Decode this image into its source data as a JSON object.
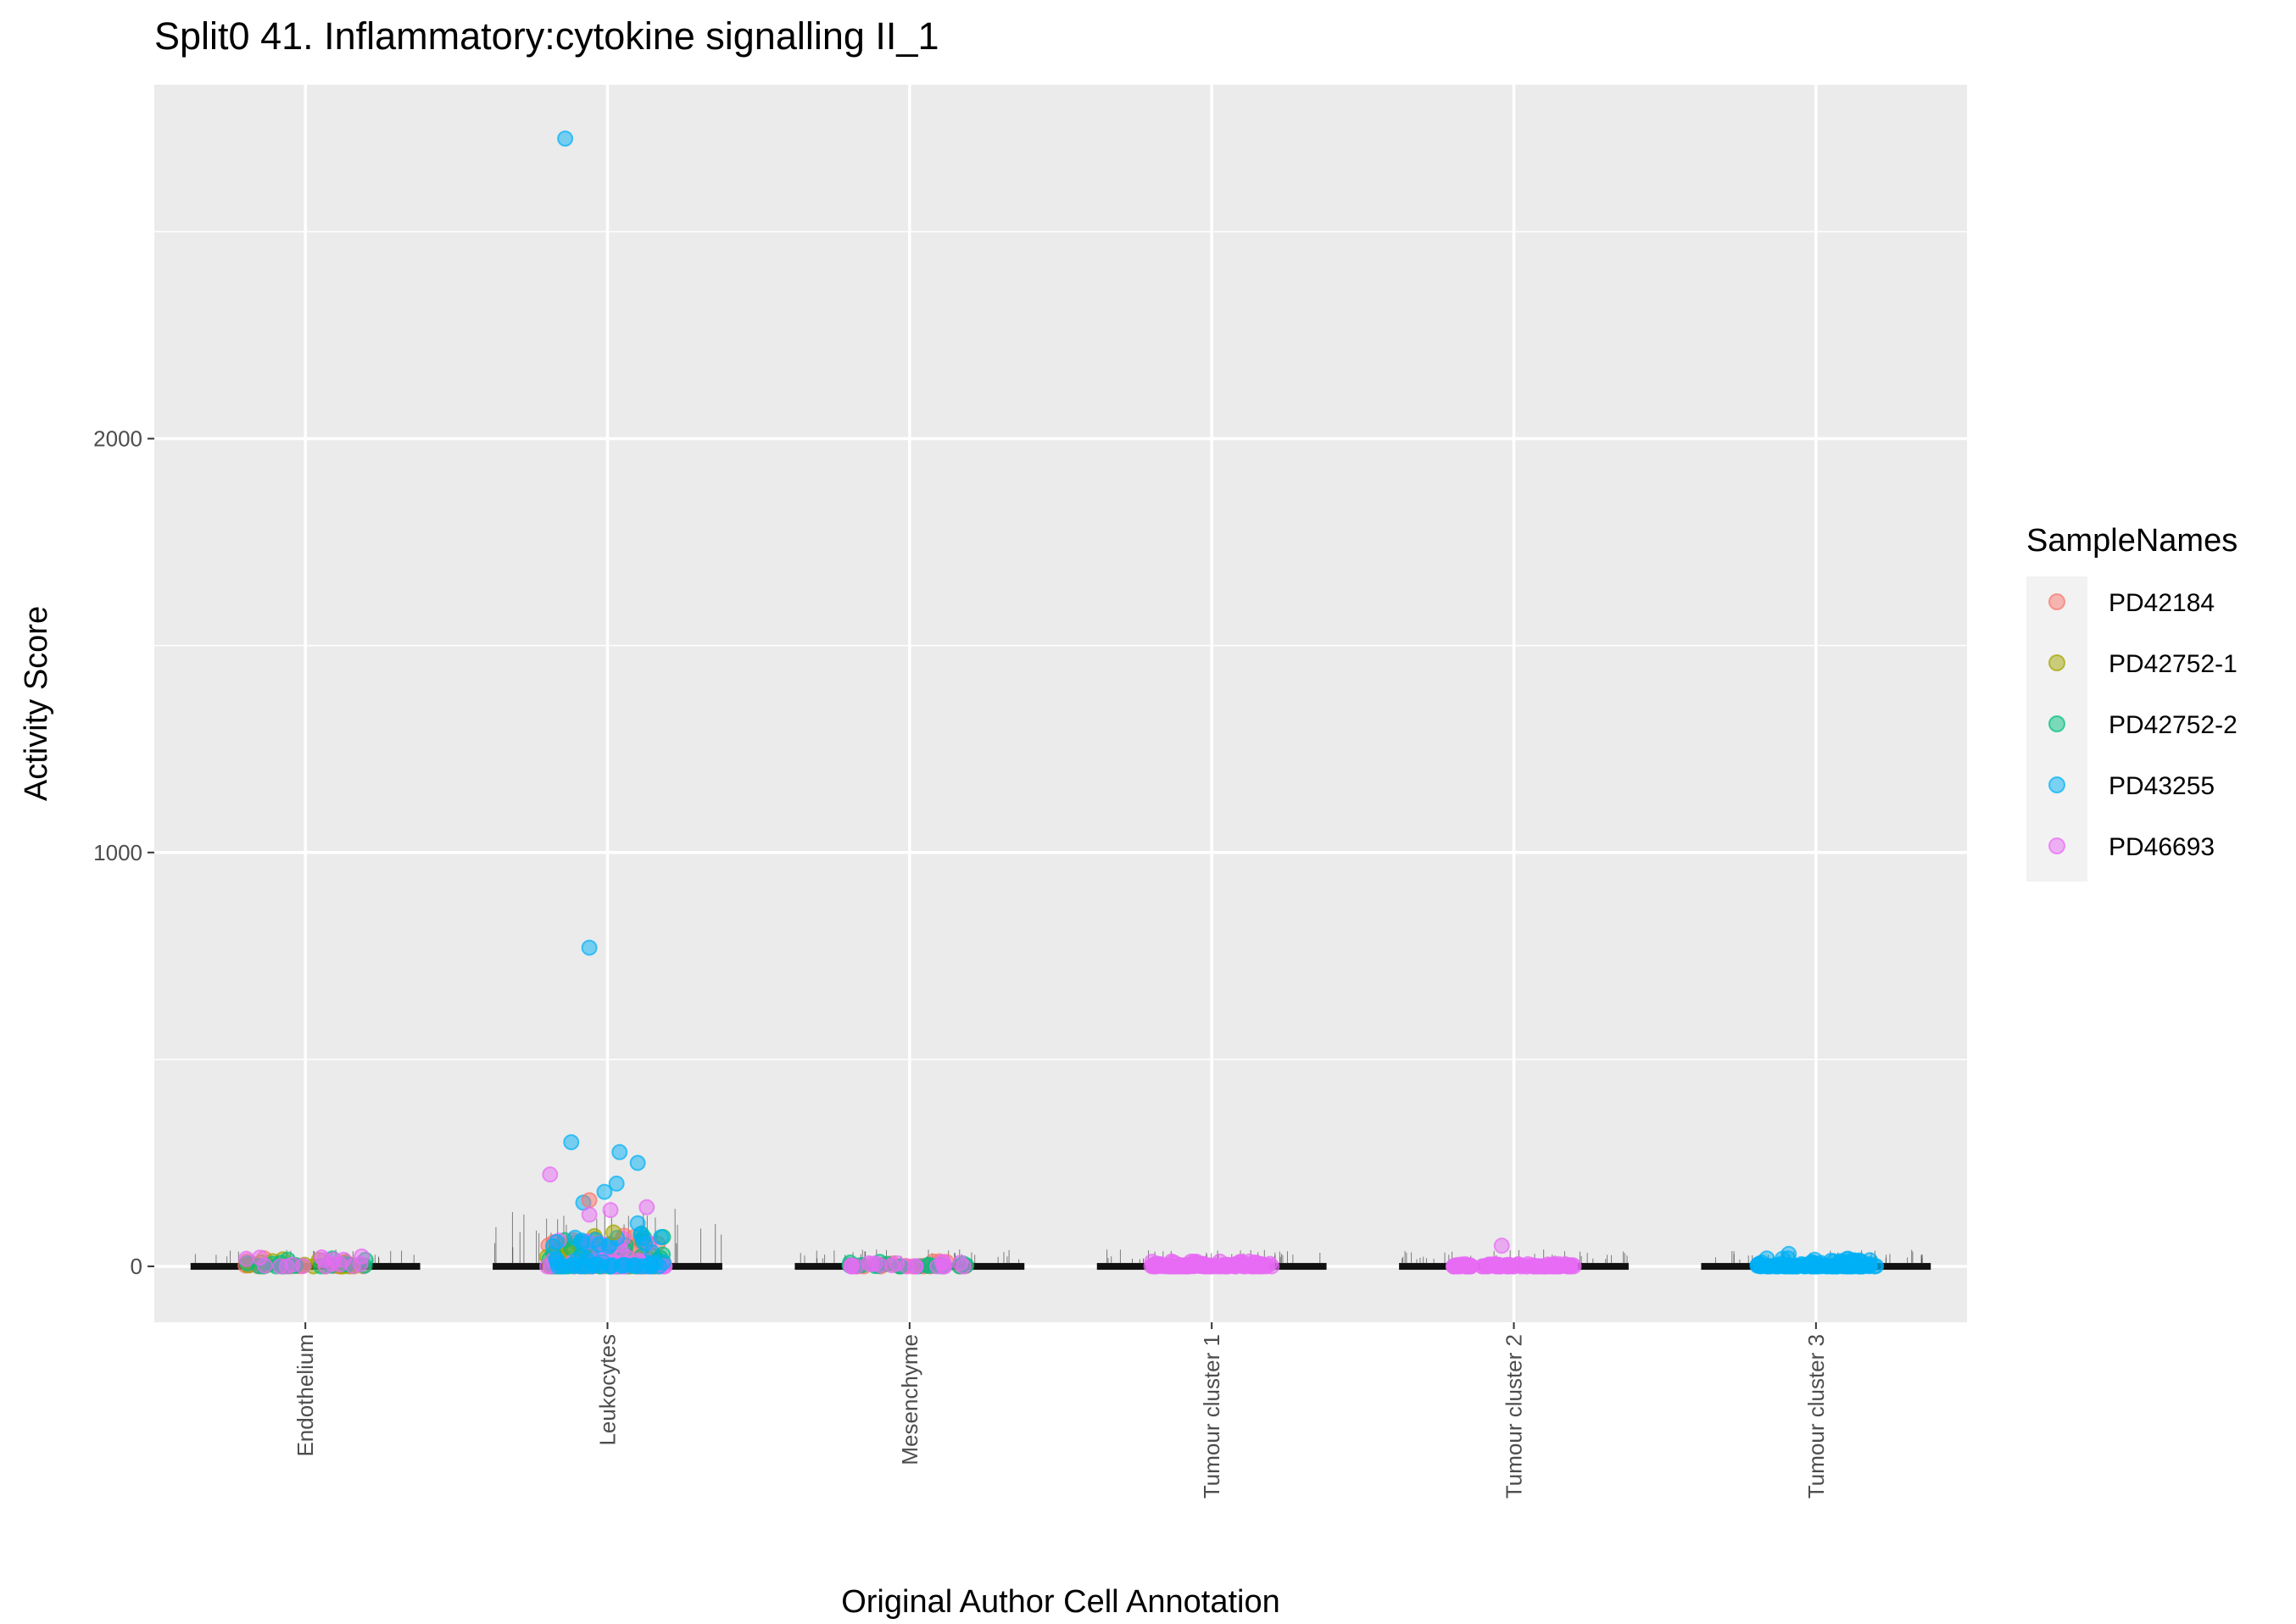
{
  "chart_data": {
    "type": "scatter",
    "title": "Split0 41. Inflammatory:cytokine signalling II_1",
    "xlabel": "Original Author Cell Annotation",
    "ylabel": "Activity Score",
    "ylim": [
      -135,
      2855
    ],
    "yticks": [
      0,
      1000,
      2000
    ],
    "ytick_labels": [
      "0",
      "1000",
      "2000"
    ],
    "grid": true,
    "categories": [
      "Endothelium",
      "Leukocytes",
      "Mesenchyme",
      "Tumour cluster 1",
      "Tumour cluster 2",
      "Tumour cluster 3"
    ],
    "legend": {
      "title": "SampleNames",
      "placement": "right",
      "entries": [
        "PD42184",
        "PD42752-1",
        "PD42752-2",
        "PD43255",
        "PD46693"
      ]
    },
    "series_colors": {
      "PD42184": "#F8766D",
      "PD42752-1": "#A3A500",
      "PD42752-2": "#00BF7D",
      "PD43255": "#00B0F6",
      "PD46693": "#E76BF3"
    },
    "clusters": [
      {
        "category": "Endothelium",
        "samples": [
          "PD42184",
          "PD42752-1",
          "PD42752-2",
          "PD46693"
        ],
        "count": 70,
        "max": 25
      },
      {
        "category": "Leukocytes",
        "samples": [
          "PD42184",
          "PD42752-1",
          "PD42752-2",
          "PD46693",
          "PD43255"
        ],
        "count": 260,
        "max": 80
      },
      {
        "category": "Mesenchyme",
        "samples": [
          "PD42184",
          "PD42752-2",
          "PD46693"
        ],
        "count": 60,
        "max": 15
      },
      {
        "category": "Tumour cluster 1",
        "samples": [
          "PD46693"
        ],
        "count": 120,
        "max": 12
      },
      {
        "category": "Tumour cluster 2",
        "samples": [
          "PD46693"
        ],
        "count": 110,
        "max": 6
      },
      {
        "category": "Tumour cluster 3",
        "samples": [
          "PD43255"
        ],
        "count": 120,
        "max": 20
      }
    ],
    "outliers": [
      {
        "category": "Leukocytes",
        "jitter": -0.14,
        "sample": "PD43255",
        "value": 2725
      },
      {
        "category": "Leukocytes",
        "jitter": -0.06,
        "sample": "PD43255",
        "value": 770
      },
      {
        "category": "Leukocytes",
        "jitter": -0.12,
        "sample": "PD43255",
        "value": 300
      },
      {
        "category": "Leukocytes",
        "jitter": 0.04,
        "sample": "PD43255",
        "value": 276
      },
      {
        "category": "Leukocytes",
        "jitter": 0.1,
        "sample": "PD43255",
        "value": 250
      },
      {
        "category": "Leukocytes",
        "jitter": 0.03,
        "sample": "PD43255",
        "value": 200
      },
      {
        "category": "Leukocytes",
        "jitter": -0.01,
        "sample": "PD43255",
        "value": 180
      },
      {
        "category": "Leukocytes",
        "jitter": -0.08,
        "sample": "PD43255",
        "value": 154
      },
      {
        "category": "Leukocytes",
        "jitter": -0.19,
        "sample": "PD46693",
        "value": 222
      },
      {
        "category": "Leukocytes",
        "jitter": -0.06,
        "sample": "PD42184",
        "value": 160
      },
      {
        "category": "Leukocytes",
        "jitter": 0.13,
        "sample": "PD46693",
        "value": 143
      },
      {
        "category": "Leukocytes",
        "jitter": 0.01,
        "sample": "PD46693",
        "value": 136
      },
      {
        "category": "Leukocytes",
        "jitter": -0.06,
        "sample": "PD46693",
        "value": 125
      },
      {
        "category": "Leukocytes",
        "jitter": 0.1,
        "sample": "PD43255",
        "value": 104
      },
      {
        "category": "Leukocytes",
        "jitter": 0.11,
        "sample": "PD43255",
        "value": 78
      },
      {
        "category": "Leukocytes",
        "jitter": 0.02,
        "sample": "PD42752-1",
        "value": 82
      },
      {
        "category": "Leukocytes",
        "jitter": -0.04,
        "sample": "PD43255",
        "value": 64
      },
      {
        "category": "Tumour cluster 2",
        "jitter": -0.04,
        "sample": "PD46693",
        "value": 50
      },
      {
        "category": "Tumour cluster 3",
        "jitter": -0.09,
        "sample": "PD43255",
        "value": 30
      }
    ]
  }
}
